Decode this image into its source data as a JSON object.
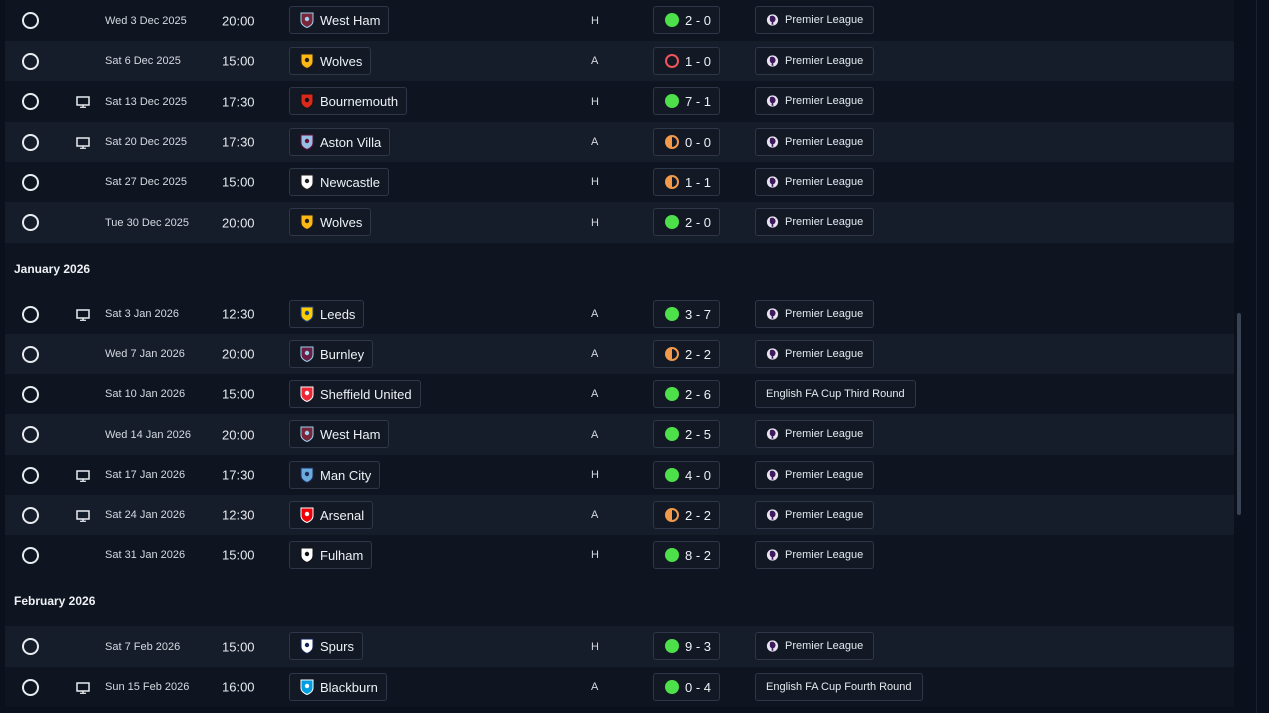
{
  "colors": {
    "win": "#4ee04b",
    "draw": "#f2994a",
    "loss": "#f0545a",
    "row_alt": "#161d2a",
    "row_plain": "#0f1520"
  },
  "icons": {
    "select": "circle-outline-icon",
    "tv": "tv-icon",
    "league": "premier-league-lion-icon"
  },
  "sections": [
    {
      "month": null,
      "fixtures": [
        {
          "date": "Wed 3 Dec 2025",
          "time": "20:00",
          "team": "West Ham",
          "crest": "west-ham-crest-icon",
          "venue": "H",
          "score": "2 - 0",
          "outcome": "win",
          "competition": "Premier League",
          "tv": false
        },
        {
          "date": "Sat 6 Dec 2025",
          "time": "15:00",
          "team": "Wolves",
          "crest": "wolves-crest-icon",
          "venue": "A",
          "score": "1 - 0",
          "outcome": "loss",
          "competition": "Premier League",
          "tv": false
        },
        {
          "date": "Sat 13 Dec 2025",
          "time": "17:30",
          "team": "Bournemouth",
          "crest": "bournemouth-crest-icon",
          "venue": "H",
          "score": "7 - 1",
          "outcome": "win",
          "competition": "Premier League",
          "tv": true
        },
        {
          "date": "Sat 20 Dec 2025",
          "time": "17:30",
          "team": "Aston Villa",
          "crest": "aston-villa-crest-icon",
          "venue": "A",
          "score": "0 - 0",
          "outcome": "draw",
          "competition": "Premier League",
          "tv": true
        },
        {
          "date": "Sat 27 Dec 2025",
          "time": "15:00",
          "team": "Newcastle",
          "crest": "newcastle-crest-icon",
          "venue": "H",
          "score": "1 - 1",
          "outcome": "draw",
          "competition": "Premier League",
          "tv": false
        },
        {
          "date": "Tue 30 Dec 2025",
          "time": "20:00",
          "team": "Wolves",
          "crest": "wolves-crest-icon",
          "venue": "H",
          "score": "2 - 0",
          "outcome": "win",
          "competition": "Premier League",
          "tv": false
        }
      ]
    },
    {
      "month": "January 2026",
      "fixtures": [
        {
          "date": "Sat 3 Jan 2026",
          "time": "12:30",
          "team": "Leeds",
          "crest": "leeds-crest-icon",
          "venue": "A",
          "score": "3 - 7",
          "outcome": "win",
          "competition": "Premier League",
          "tv": true
        },
        {
          "date": "Wed 7 Jan 2026",
          "time": "20:00",
          "team": "Burnley",
          "crest": "burnley-crest-icon",
          "venue": "A",
          "score": "2 - 2",
          "outcome": "draw",
          "competition": "Premier League",
          "tv": false
        },
        {
          "date": "Sat 10 Jan 2026",
          "time": "15:00",
          "team": "Sheffield United",
          "crest": "sheffield-united-crest-icon",
          "venue": "A",
          "score": "2 - 6",
          "outcome": "win",
          "competition": "English FA Cup Third Round",
          "tv": false
        },
        {
          "date": "Wed 14 Jan 2026",
          "time": "20:00",
          "team": "West Ham",
          "crest": "west-ham-crest-icon",
          "venue": "A",
          "score": "2 - 5",
          "outcome": "win",
          "competition": "Premier League",
          "tv": false
        },
        {
          "date": "Sat 17 Jan 2026",
          "time": "17:30",
          "team": "Man City",
          "crest": "man-city-crest-icon",
          "venue": "H",
          "score": "4 - 0",
          "outcome": "win",
          "competition": "Premier League",
          "tv": true
        },
        {
          "date": "Sat 24 Jan 2026",
          "time": "12:30",
          "team": "Arsenal",
          "crest": "arsenal-crest-icon",
          "venue": "A",
          "score": "2 - 2",
          "outcome": "draw",
          "competition": "Premier League",
          "tv": true
        },
        {
          "date": "Sat 31 Jan 2026",
          "time": "15:00",
          "team": "Fulham",
          "crest": "fulham-crest-icon",
          "venue": "H",
          "score": "8 - 2",
          "outcome": "win",
          "competition": "Premier League",
          "tv": false
        }
      ]
    },
    {
      "month": "February 2026",
      "fixtures": [
        {
          "date": "Sat 7 Feb 2026",
          "time": "15:00",
          "team": "Spurs",
          "crest": "spurs-crest-icon",
          "venue": "H",
          "score": "9 - 3",
          "outcome": "win",
          "competition": "Premier League",
          "tv": false
        },
        {
          "date": "Sun 15 Feb 2026",
          "time": "16:00",
          "team": "Blackburn",
          "crest": "blackburn-crest-icon",
          "venue": "A",
          "score": "0 - 4",
          "outcome": "win",
          "competition": "English FA Cup Fourth Round",
          "tv": true
        }
      ]
    }
  ]
}
